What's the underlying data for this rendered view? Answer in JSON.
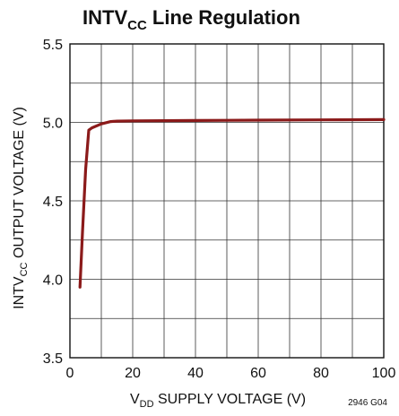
{
  "chart_data": {
    "type": "line",
    "title": {
      "main": "INTV",
      "sub": "CC",
      "rest": " Line Regulation"
    },
    "xlabel": {
      "main": "V",
      "sub": "DD",
      "rest": " SUPPLY VOLTAGE (V)"
    },
    "ylabel": {
      "main": "INTV",
      "sub": "CC",
      "rest": " OUTPUT VOLTAGE (V)"
    },
    "xlim": [
      0,
      100
    ],
    "ylim": [
      3.5,
      5.5
    ],
    "x_ticks": [
      0,
      20,
      40,
      60,
      80,
      100
    ],
    "y_ticks": [
      "3.5",
      "4.0",
      "4.5",
      "5.0",
      "5.5"
    ],
    "grid": true,
    "series": [
      {
        "color": "#8b1a1a",
        "x": [
          3.2,
          4.0,
          5.0,
          6.0,
          7.0,
          10.0,
          13.0,
          15.0,
          20.0,
          40.0,
          60.0,
          80.0,
          100.0
        ],
        "y": [
          3.95,
          4.3,
          4.7,
          4.95,
          4.965,
          4.99,
          5.005,
          5.008,
          5.01,
          5.012,
          5.014,
          5.016,
          5.018
        ]
      }
    ],
    "figure_id": "2946 G04"
  }
}
